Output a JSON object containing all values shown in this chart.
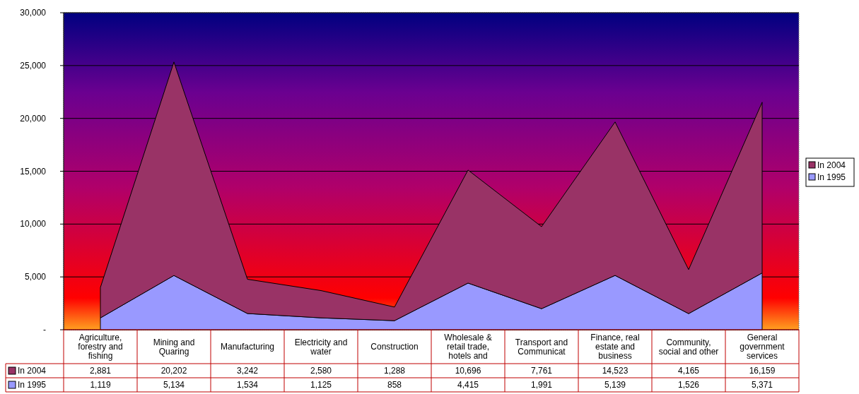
{
  "chart_data": {
    "type": "area",
    "stacked": true,
    "categories": [
      "Agriculture, forestry and fishing",
      "Mining and Quaring",
      "Manufacturing",
      "Electricity and water",
      "Construction",
      "Wholesale & retail trade, hotels and",
      "Transport and Communicat",
      "Finance, real estate and business",
      "Community, social and other",
      "General government services"
    ],
    "series": [
      {
        "name": "In 1995",
        "color": "#9999ff",
        "values": [
          1119,
          5134,
          1534,
          1125,
          858,
          4415,
          1991,
          5139,
          1526,
          5371
        ],
        "value_labels": [
          "1,119",
          "5,134",
          "1,534",
          "1,125",
          "858",
          "4,415",
          "1,991",
          "5,139",
          "1,526",
          "5,371"
        ]
      },
      {
        "name": "In 2004",
        "color": "#993366",
        "values": [
          2881,
          20202,
          3242,
          2580,
          1288,
          10696,
          7761,
          14523,
          4165,
          16159
        ],
        "value_labels": [
          "2,881",
          "20,202",
          "3,242",
          "2,580",
          "1,288",
          "10,696",
          "7,761",
          "14,523",
          "4,165",
          "16,159"
        ]
      }
    ],
    "ylim": [
      0,
      30000
    ],
    "yticks": [
      {
        "value": 0,
        "label": "-"
      },
      {
        "value": 5000,
        "label": "5,000"
      },
      {
        "value": 10000,
        "label": "10,000"
      },
      {
        "value": 15000,
        "label": "15,000"
      },
      {
        "value": 20000,
        "label": "20,000"
      },
      {
        "value": 25000,
        "label": "25,000"
      },
      {
        "value": 30000,
        "label": "30,000"
      }
    ],
    "grid": "y",
    "legend": "right"
  }
}
